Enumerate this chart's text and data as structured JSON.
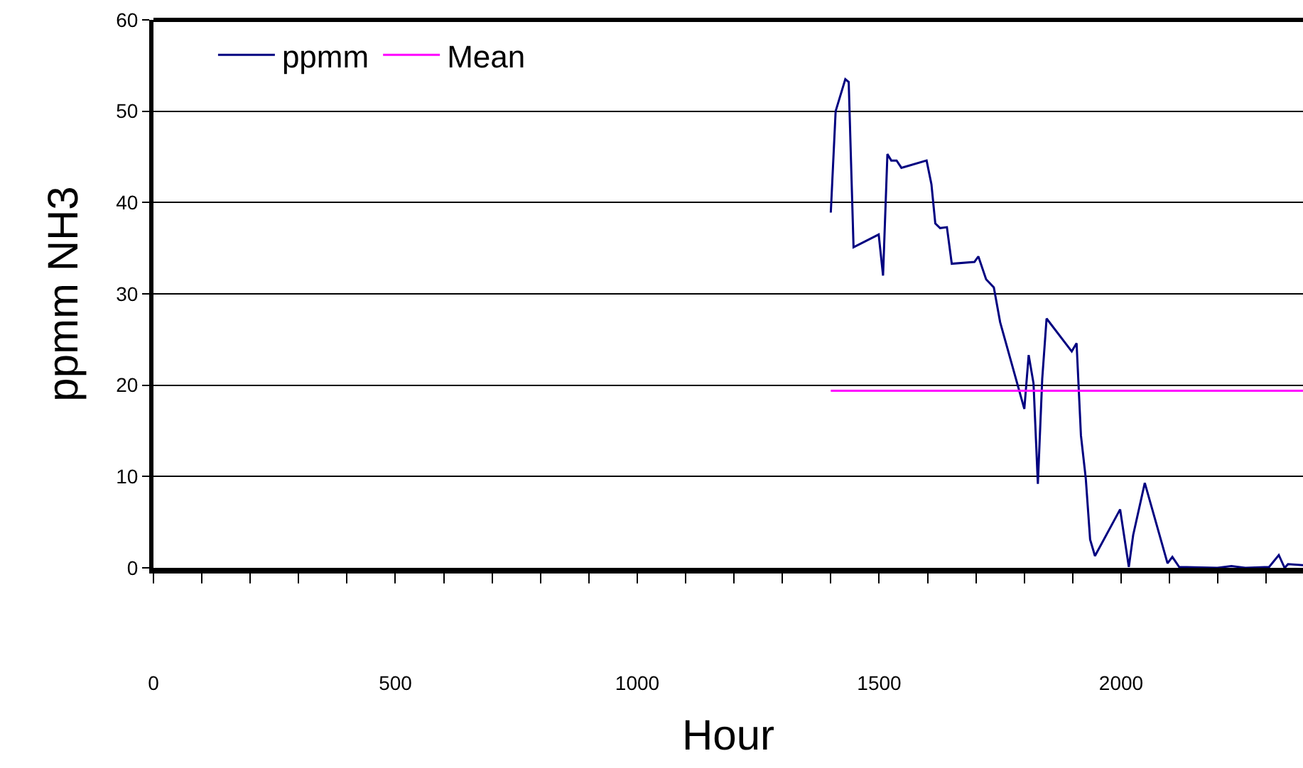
{
  "chart_data": {
    "type": "line",
    "xlabel": "Hour",
    "ylabel": "ppmm NH3",
    "xlim": [
      0,
      2376
    ],
    "xticks": [
      0,
      {
        "value": 100,
        "label": null
      },
      {
        "value": 200,
        "label": null
      },
      {
        "value": 300,
        "label": null
      },
      {
        "value": 400,
        "label": null
      },
      500,
      {
        "value": 600,
        "label": null
      },
      {
        "value": 700,
        "label": null
      },
      {
        "value": 800,
        "label": null
      },
      {
        "value": 900,
        "label": null
      },
      1000,
      {
        "value": 1100,
        "label": null
      },
      {
        "value": 1200,
        "label": null
      },
      {
        "value": 1300,
        "label": null
      },
      {
        "value": 1400,
        "label": null
      },
      1500,
      {
        "value": 1600,
        "label": null
      },
      {
        "value": 1700,
        "label": null
      },
      {
        "value": 1800,
        "label": null
      },
      {
        "value": 1900,
        "label": null
      },
      2000,
      {
        "value": 2100,
        "label": null
      },
      {
        "value": 2200,
        "label": null
      },
      {
        "value": 2300,
        "label": null
      }
    ],
    "ylim": [
      0,
      60
    ],
    "yticks": [
      0,
      10,
      20,
      30,
      40,
      50,
      60
    ],
    "grid": "y",
    "legend": "top left",
    "marker": "none",
    "line_style": "solid",
    "series": [
      {
        "name": "ppmm",
        "color": "#000080",
        "x": [
          1400,
          1410,
          1430,
          1437,
          1447,
          1499,
          1508,
          1517,
          1525,
          1536,
          1546,
          1598,
          1608,
          1616,
          1626,
          1640,
          1650,
          1697,
          1705,
          1721,
          1737,
          1750,
          1800,
          1809,
          1819,
          1828,
          1837,
          1846,
          1898,
          1908,
          1917,
          1927,
          1936,
          1946,
          1998,
          2016,
          2025,
          2049,
          2096,
          2106,
          2120,
          2199,
          2228,
          2257,
          2306,
          2326,
          2338,
          2345,
          2376
        ],
        "values": [
          38.9,
          50,
          53.5,
          53.2,
          35.1,
          36.5,
          32,
          45.3,
          44.6,
          44.6,
          43.8,
          44.6,
          42,
          37.7,
          37.2,
          37.3,
          33.3,
          33.5,
          34.1,
          31.6,
          30.7,
          26.9,
          17.4,
          23.3,
          20.2,
          9.2,
          20.7,
          27.3,
          23.7,
          24.6,
          14.5,
          9.8,
          3.1,
          1.3,
          6.4,
          0.1,
          3.6,
          9.3,
          0.5,
          1.2,
          0.1,
          0,
          0.2,
          0,
          0.1,
          1.4,
          0,
          0.4,
          0.3
        ]
      },
      {
        "name": "Mean",
        "color": "#ff00ff",
        "x": [
          1400,
          2376
        ],
        "values": [
          19.4,
          19.4
        ]
      }
    ]
  }
}
